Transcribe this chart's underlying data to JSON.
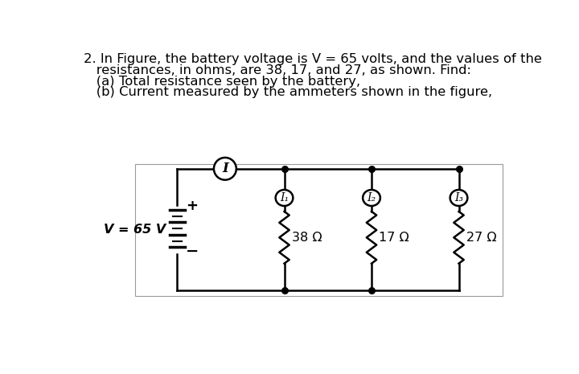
{
  "title_line1": "2. In Figure, the battery voltage is V = 65 volts, and the values of the",
  "title_line2": "   resistances, in ohms, are 38, 17, and 27, as shown. Find:",
  "title_line3": "   (a) Total resistance seen by the battery,",
  "title_line4": "   (b) Current measured by the ammeters shown in the figure,",
  "bg_color": "#ffffff",
  "line_color": "#000000",
  "voltage_label": "V = 65 V",
  "resistors": [
    "38 Ω",
    "17 Ω",
    "27 Ω"
  ],
  "ammeter_labels": [
    "I₁",
    "I₂",
    "I₃"
  ],
  "main_ammeter": "I",
  "font_size_title": 11.8,
  "font_size_circuit": 11.5
}
